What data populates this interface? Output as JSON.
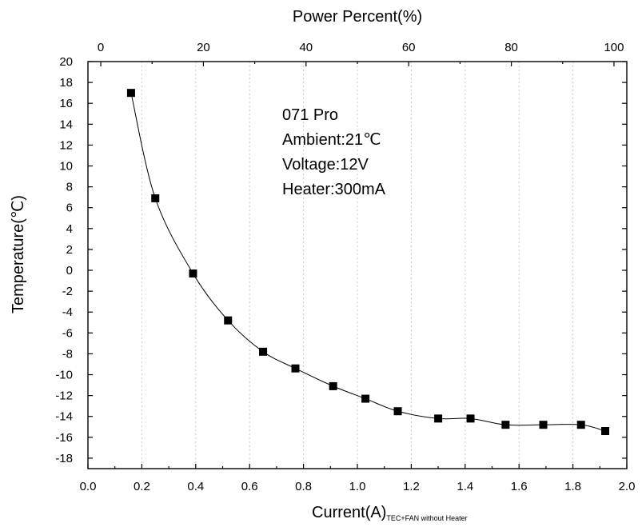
{
  "chart_data": {
    "type": "scatter",
    "top_axis": {
      "title": "Power Percent(%)",
      "range": [
        -2.5,
        102.5
      ],
      "ticks": [
        0,
        20,
        40,
        60,
        80,
        100
      ],
      "tick_labels": [
        "0",
        "20",
        "40",
        "60",
        "80",
        "100"
      ]
    },
    "xlabel": "Current(A)",
    "xlabel_subscript": "TEC+FAN without Heater",
    "ylabel": "Temperature(℃)",
    "xlim": [
      0.0,
      2.0
    ],
    "ylim": [
      -19,
      20
    ],
    "x_ticks": [
      0.0,
      0.2,
      0.4,
      0.6,
      0.8,
      1.0,
      1.2,
      1.4,
      1.6,
      1.8,
      2.0
    ],
    "x_tick_labels": [
      "0.0",
      "0.2",
      "0.4",
      "0.6",
      "0.8",
      "1.0",
      "1.2",
      "1.4",
      "1.6",
      "1.8",
      "2.0"
    ],
    "y_ticks": [
      20,
      18,
      16,
      14,
      12,
      10,
      8,
      6,
      4,
      2,
      0,
      -2,
      -4,
      -6,
      -8,
      -10,
      -12,
      -14,
      -16,
      -18
    ],
    "y_tick_labels": [
      "20",
      "18",
      "16",
      "14",
      "12",
      "10",
      "8",
      "6",
      "4",
      "2",
      "0",
      "-2",
      "-4",
      "-6",
      "-8",
      "-10",
      "-12",
      "-14",
      "-16",
      "-18"
    ],
    "grid": "vertical",
    "marker": "square",
    "series": [
      {
        "x": [
          0.16,
          0.25,
          0.39,
          0.52,
          0.65,
          0.77,
          0.91,
          1.03,
          1.15,
          1.3,
          1.42,
          1.55,
          1.69,
          1.83,
          1.92
        ],
        "y": [
          17.0,
          6.9,
          -0.3,
          -4.8,
          -7.8,
          -9.4,
          -11.1,
          -12.3,
          -13.5,
          -14.2,
          -14.2,
          -14.8,
          -14.8,
          -14.8,
          -15.4
        ]
      }
    ],
    "annotations": [
      "071 Pro",
      "Ambient:21℃",
      "Voltage:12V",
      "Heater:300mA"
    ]
  }
}
